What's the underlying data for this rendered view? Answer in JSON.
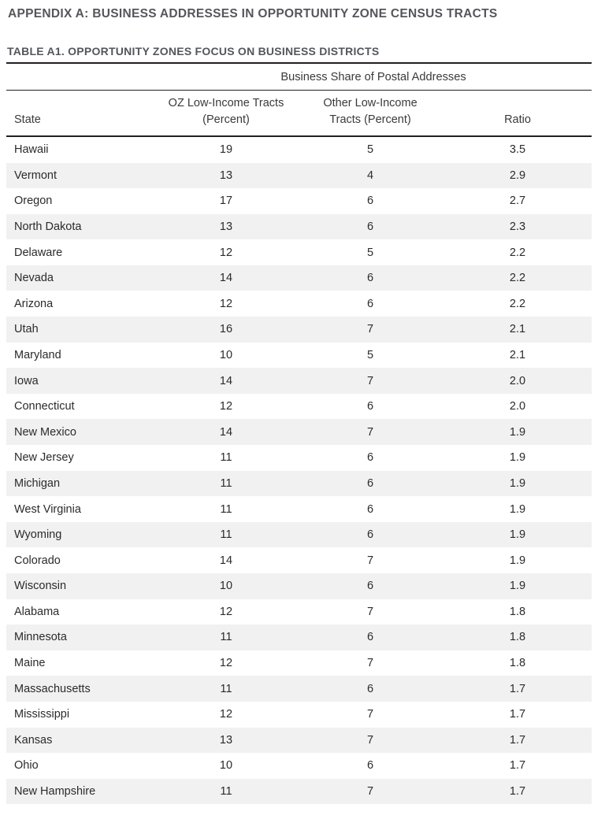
{
  "titles": {
    "appendix": "APPENDIX A: BUSINESS ADDRESSES IN OPPORTUNITY ZONE CENSUS TRACTS",
    "table": "TABLE A1. OPPORTUNITY ZONES FOCUS ON BUSINESS DISTRICTS"
  },
  "table": {
    "span_header": "Business Share of Postal Addresses",
    "headers": {
      "state": "State",
      "oz_line1": "OZ Low-Income Tracts",
      "oz_line2": "(Percent)",
      "other_line1": "Other Low-Income",
      "other_line2": "Tracts (Percent)",
      "ratio": "Ratio"
    },
    "rows": [
      [
        "Hawaii",
        "19",
        "5",
        "3.5"
      ],
      [
        "Vermont",
        "13",
        "4",
        "2.9"
      ],
      [
        "Oregon",
        "17",
        "6",
        "2.7"
      ],
      [
        "North Dakota",
        "13",
        "6",
        "2.3"
      ],
      [
        "Delaware",
        "12",
        "5",
        "2.2"
      ],
      [
        "Nevada",
        "14",
        "6",
        "2.2"
      ],
      [
        "Arizona",
        "12",
        "6",
        "2.2"
      ],
      [
        "Utah",
        "16",
        "7",
        "2.1"
      ],
      [
        "Maryland",
        "10",
        "5",
        "2.1"
      ],
      [
        "Iowa",
        "14",
        "7",
        "2.0"
      ],
      [
        "Connecticut",
        "12",
        "6",
        "2.0"
      ],
      [
        "New Mexico",
        "14",
        "7",
        "1.9"
      ],
      [
        "New Jersey",
        "11",
        "6",
        "1.9"
      ],
      [
        "Michigan",
        "11",
        "6",
        "1.9"
      ],
      [
        "West Virginia",
        "11",
        "6",
        "1.9"
      ],
      [
        "Wyoming",
        "11",
        "6",
        "1.9"
      ],
      [
        "Colorado",
        "14",
        "7",
        "1.9"
      ],
      [
        "Wisconsin",
        "10",
        "6",
        "1.9"
      ],
      [
        "Alabama",
        "12",
        "7",
        "1.8"
      ],
      [
        "Minnesota",
        "11",
        "6",
        "1.8"
      ],
      [
        "Maine",
        "12",
        "7",
        "1.8"
      ],
      [
        "Massachusetts",
        "11",
        "6",
        "1.7"
      ],
      [
        "Mississippi",
        "12",
        "7",
        "1.7"
      ],
      [
        "Kansas",
        "13",
        "7",
        "1.7"
      ],
      [
        "Ohio",
        "10",
        "6",
        "1.7"
      ],
      [
        "New Hampshire",
        "11",
        "7",
        "1.7"
      ]
    ]
  },
  "colors": {
    "stripe": "#F1F1F2",
    "rule": "#231F20",
    "heading_text": "#54565B",
    "header_text": "#3A3A3C",
    "body_text": "#2B2B2D"
  }
}
